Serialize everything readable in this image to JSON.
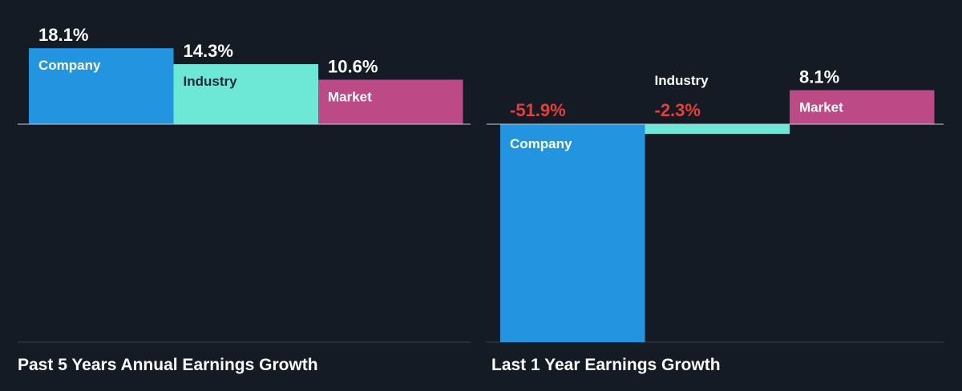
{
  "colors": {
    "background": "#151b24",
    "company": "#2394e0",
    "industry": "#6de8d6",
    "market": "#bb4a87",
    "positive_label": "#ffffff",
    "negative_label": "#e4403a",
    "axis": "#c8ccd2",
    "divider": "#3a414b"
  },
  "chart_data": [
    {
      "type": "bar",
      "title": "Past 5 Years Annual Earnings Growth",
      "categories": [
        "Company",
        "Industry",
        "Market"
      ],
      "values": [
        18.1,
        14.3,
        10.6
      ],
      "value_labels": [
        "18.1%",
        "14.3%",
        "10.6%"
      ],
      "unit": "%",
      "ylim": [
        -51.9,
        18.1
      ],
      "grid": false,
      "legend": "none"
    },
    {
      "type": "bar",
      "title": "Last 1 Year Earnings Growth",
      "categories": [
        "Company",
        "Industry",
        "Market"
      ],
      "values": [
        -51.9,
        -2.3,
        8.1
      ],
      "value_labels": [
        "-51.9%",
        "-2.3%",
        "8.1%"
      ],
      "unit": "%",
      "ylim": [
        -51.9,
        18.1
      ],
      "grid": false,
      "legend": "none"
    }
  ]
}
